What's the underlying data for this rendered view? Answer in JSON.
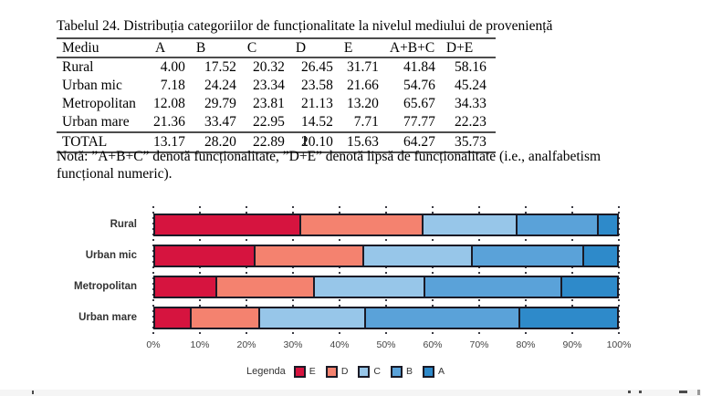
{
  "document": {
    "table_title": "Tabelul 24. Distribuția categoriilor de funcționalitate la nivelul mediului de proveniență",
    "table": {
      "columns": [
        "Mediu",
        "A",
        "B",
        "C",
        "D",
        "E",
        "A+B+C",
        "D+E"
      ],
      "rows": [
        {
          "label": "Rural",
          "values": [
            "4.00",
            "17.52",
            "20.32",
            "26.45",
            "31.71",
            "41.84",
            "58.16"
          ]
        },
        {
          "label": "Urban mic",
          "values": [
            "7.18",
            "24.24",
            "23.34",
            "23.58",
            "21.66",
            "54.76",
            "45.24"
          ]
        },
        {
          "label": "Metropolitan",
          "values": [
            "12.08",
            "29.79",
            "23.81",
            "21.13",
            "13.20",
            "65.67",
            "34.33"
          ]
        },
        {
          "label": "Urban mare",
          "values": [
            "21.36",
            "33.47",
            "22.95",
            "14.52",
            "7.71",
            "77.77",
            "22.23"
          ]
        },
        {
          "label": "TOTAL",
          "values": [
            "13.17",
            "28.20",
            "22.89",
            "20.10",
            "15.63",
            "64.27",
            "35.73"
          ]
        }
      ]
    },
    "note_line1": "Notă: ”A+B+C” denotă funcționalitate, ”D+E” denotă lipsă de funcționalitate (i.e., analfabetism",
    "note_line2": "funcțional numeric)."
  },
  "chart_data": {
    "type": "bar",
    "orientation": "horizontal",
    "stacked": true,
    "categories": [
      "Rural",
      "Urban mic",
      "Metropolitan",
      "Urban mare"
    ],
    "series": [
      {
        "name": "E",
        "color": "#d6143f",
        "values": [
          31.71,
          21.66,
          13.2,
          7.71
        ]
      },
      {
        "name": "D",
        "color": "#f4826f",
        "values": [
          26.45,
          23.58,
          21.13,
          14.52
        ]
      },
      {
        "name": "C",
        "color": "#97c6e9",
        "values": [
          20.32,
          23.34,
          23.81,
          22.95
        ]
      },
      {
        "name": "B",
        "color": "#5aa2d9",
        "values": [
          17.52,
          24.24,
          29.79,
          33.47
        ]
      },
      {
        "name": "A",
        "color": "#2e8aca",
        "values": [
          4.0,
          7.18,
          12.08,
          21.36
        ]
      }
    ],
    "x_ticks": [
      "0%",
      "10%",
      "20%",
      "30%",
      "40%",
      "50%",
      "60%",
      "70%",
      "80%",
      "90%",
      "100%"
    ],
    "xlim": [
      0,
      100
    ],
    "grid": "dotted vertical lines every 10%",
    "legend_title": "Legenda",
    "legend_position": "bottom",
    "frame_color": "#1a1a26"
  }
}
